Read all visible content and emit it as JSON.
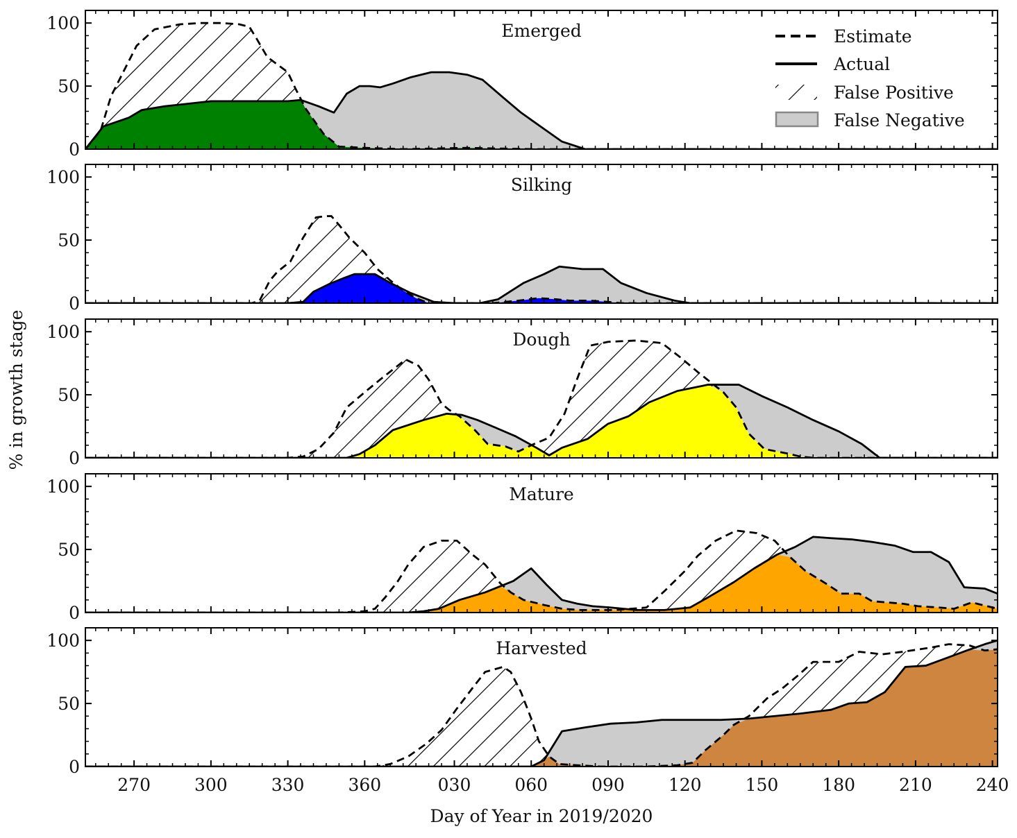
{
  "figure": {
    "ylabel": "% in growth stage",
    "xlabel": "Day of Year in 2019/2020",
    "legend": {
      "position": "top-right of first panel",
      "items": [
        {
          "label": "Estimate",
          "kind": "dashed-line"
        },
        {
          "label": "Actual",
          "kind": "solid-line"
        },
        {
          "label": "False Positive",
          "kind": "hatch"
        },
        {
          "label": "False Negative",
          "kind": "gray-patch"
        }
      ]
    },
    "colors": {
      "false_negative": "#cccccc",
      "line": "#000000",
      "emerged": "#008000",
      "silking": "#0000ff",
      "dough": "#ffff00",
      "mature": "#ffa500",
      "harvested": "#cd853f"
    },
    "xticks": [
      {
        "pos": 270,
        "label": "270"
      },
      {
        "pos": 300,
        "label": "300"
      },
      {
        "pos": 330,
        "label": "330"
      },
      {
        "pos": 360,
        "label": "360"
      },
      {
        "pos": 395,
        "label": "030"
      },
      {
        "pos": 425,
        "label": "060"
      },
      {
        "pos": 455,
        "label": "090"
      },
      {
        "pos": 485,
        "label": "120"
      },
      {
        "pos": 515,
        "label": "150"
      },
      {
        "pos": 545,
        "label": "180"
      },
      {
        "pos": 575,
        "label": "210"
      },
      {
        "pos": 605,
        "label": "240"
      }
    ],
    "yticks": [
      {
        "value": 0,
        "label": "0"
      },
      {
        "value": 50,
        "label": "50"
      },
      {
        "value": 100,
        "label": "100"
      }
    ]
  },
  "chart_data": [
    {
      "type": "area",
      "title": "Emerged",
      "color_key": "emerged",
      "xlim": [
        251,
        607
      ],
      "ylim": [
        0,
        110
      ],
      "estimate": [
        [
          251,
          0
        ],
        [
          257,
          15
        ],
        [
          261,
          42
        ],
        [
          271,
          82
        ],
        [
          278,
          95
        ],
        [
          288,
          99
        ],
        [
          296,
          100
        ],
        [
          304,
          100
        ],
        [
          311,
          99
        ],
        [
          315,
          97
        ],
        [
          318,
          87
        ],
        [
          322,
          73
        ],
        [
          330,
          61
        ],
        [
          333,
          48
        ],
        [
          337,
          32
        ],
        [
          344,
          12
        ],
        [
          350,
          2
        ],
        [
          360,
          1
        ],
        [
          375,
          0
        ],
        [
          400,
          1
        ],
        [
          425,
          0
        ],
        [
          607,
          0
        ]
      ],
      "actual": [
        [
          251,
          0
        ],
        [
          258,
          18
        ],
        [
          268,
          25
        ],
        [
          273,
          31
        ],
        [
          282,
          34
        ],
        [
          300,
          38
        ],
        [
          330,
          38
        ],
        [
          335,
          39
        ],
        [
          342,
          34
        ],
        [
          348,
          29
        ],
        [
          353,
          44
        ],
        [
          358,
          50
        ],
        [
          362,
          50
        ],
        [
          366,
          49
        ],
        [
          371,
          52
        ],
        [
          378,
          57
        ],
        [
          386,
          61
        ],
        [
          393,
          61
        ],
        [
          400,
          59
        ],
        [
          406,
          55
        ],
        [
          414,
          41
        ],
        [
          421,
          29
        ],
        [
          430,
          16
        ],
        [
          437,
          6
        ],
        [
          446,
          0
        ],
        [
          607,
          0
        ]
      ]
    },
    {
      "type": "area",
      "title": "Silking",
      "color_key": "silking",
      "xlim": [
        251,
        607
      ],
      "ylim": [
        0,
        110
      ],
      "estimate": [
        [
          251,
          0
        ],
        [
          310,
          0
        ],
        [
          316,
          0
        ],
        [
          319,
          2
        ],
        [
          323,
          18
        ],
        [
          326,
          25
        ],
        [
          331,
          33
        ],
        [
          336,
          52
        ],
        [
          341,
          68
        ],
        [
          345,
          69
        ],
        [
          347,
          69
        ],
        [
          350,
          62
        ],
        [
          354,
          52
        ],
        [
          360,
          40
        ],
        [
          365,
          27
        ],
        [
          370,
          18
        ],
        [
          375,
          10
        ],
        [
          380,
          4
        ],
        [
          385,
          0
        ],
        [
          395,
          0
        ],
        [
          410,
          0
        ],
        [
          420,
          2
        ],
        [
          428,
          4
        ],
        [
          435,
          3
        ],
        [
          440,
          2
        ],
        [
          448,
          2
        ],
        [
          455,
          1
        ],
        [
          460,
          0
        ],
        [
          607,
          0
        ]
      ],
      "actual": [
        [
          251,
          0
        ],
        [
          330,
          0
        ],
        [
          336,
          1
        ],
        [
          340,
          9
        ],
        [
          346,
          15
        ],
        [
          352,
          20
        ],
        [
          356,
          23
        ],
        [
          364,
          23
        ],
        [
          370,
          16
        ],
        [
          378,
          8
        ],
        [
          387,
          1
        ],
        [
          395,
          0
        ],
        [
          405,
          0
        ],
        [
          412,
          3
        ],
        [
          422,
          16
        ],
        [
          430,
          23
        ],
        [
          436,
          29
        ],
        [
          445,
          27
        ],
        [
          453,
          27
        ],
        [
          460,
          16
        ],
        [
          470,
          8
        ],
        [
          481,
          2
        ],
        [
          487,
          0
        ],
        [
          607,
          0
        ]
      ]
    },
    {
      "type": "area",
      "title": "Dough",
      "color_key": "dough",
      "xlim": [
        251,
        607
      ],
      "ylim": [
        0,
        110
      ],
      "estimate": [
        [
          251,
          0
        ],
        [
          320,
          0
        ],
        [
          330,
          0
        ],
        [
          336,
          1
        ],
        [
          342,
          7
        ],
        [
          348,
          20
        ],
        [
          353,
          40
        ],
        [
          360,
          52
        ],
        [
          366,
          62
        ],
        [
          371,
          70
        ],
        [
          376,
          78
        ],
        [
          381,
          73
        ],
        [
          385,
          62
        ],
        [
          390,
          43
        ],
        [
          393,
          38
        ],
        [
          397,
          33
        ],
        [
          403,
          22
        ],
        [
          408,
          11
        ],
        [
          415,
          9
        ],
        [
          420,
          5
        ],
        [
          425,
          10
        ],
        [
          432,
          16
        ],
        [
          438,
          35
        ],
        [
          443,
          63
        ],
        [
          448,
          89
        ],
        [
          455,
          92
        ],
        [
          466,
          93
        ],
        [
          476,
          91
        ],
        [
          483,
          80
        ],
        [
          490,
          68
        ],
        [
          500,
          52
        ],
        [
          505,
          40
        ],
        [
          510,
          19
        ],
        [
          516,
          7
        ],
        [
          526,
          3
        ],
        [
          530,
          1
        ],
        [
          535,
          0
        ],
        [
          607,
          0
        ]
      ],
      "actual": [
        [
          251,
          0
        ],
        [
          353,
          0
        ],
        [
          358,
          3
        ],
        [
          364,
          10
        ],
        [
          371,
          22
        ],
        [
          383,
          30
        ],
        [
          392,
          35
        ],
        [
          398,
          34
        ],
        [
          404,
          30
        ],
        [
          411,
          24
        ],
        [
          419,
          17
        ],
        [
          427,
          8
        ],
        [
          432,
          2
        ],
        [
          437,
          8
        ],
        [
          447,
          15
        ],
        [
          455,
          27
        ],
        [
          463,
          33
        ],
        [
          471,
          44
        ],
        [
          482,
          53
        ],
        [
          494,
          58
        ],
        [
          506,
          58
        ],
        [
          515,
          49
        ],
        [
          525,
          40
        ],
        [
          535,
          30
        ],
        [
          545,
          21
        ],
        [
          554,
          11
        ],
        [
          561,
          0
        ],
        [
          607,
          0
        ]
      ]
    },
    {
      "type": "area",
      "title": "Mature",
      "color_key": "mature",
      "xlim": [
        251,
        607
      ],
      "ylim": [
        0,
        110
      ],
      "estimate": [
        [
          251,
          0
        ],
        [
          350,
          0
        ],
        [
          360,
          1
        ],
        [
          364,
          3
        ],
        [
          368,
          12
        ],
        [
          373,
          25
        ],
        [
          377,
          38
        ],
        [
          383,
          52
        ],
        [
          390,
          57
        ],
        [
          396,
          57
        ],
        [
          402,
          46
        ],
        [
          407,
          38
        ],
        [
          413,
          23
        ],
        [
          417,
          16
        ],
        [
          422,
          10
        ],
        [
          430,
          6
        ],
        [
          437,
          3
        ],
        [
          444,
          2
        ],
        [
          452,
          2
        ],
        [
          458,
          2
        ],
        [
          464,
          3
        ],
        [
          470,
          4
        ],
        [
          477,
          17
        ],
        [
          485,
          33
        ],
        [
          490,
          45
        ],
        [
          497,
          57
        ],
        [
          505,
          65
        ],
        [
          513,
          63
        ],
        [
          520,
          57
        ],
        [
          526,
          44
        ],
        [
          532,
          33
        ],
        [
          540,
          23
        ],
        [
          546,
          15
        ],
        [
          553,
          15
        ],
        [
          558,
          9
        ],
        [
          564,
          8
        ],
        [
          570,
          7
        ],
        [
          576,
          5
        ],
        [
          584,
          4
        ],
        [
          590,
          3
        ],
        [
          597,
          8
        ],
        [
          603,
          5
        ],
        [
          607,
          3
        ]
      ],
      "actual": [
        [
          251,
          0
        ],
        [
          377,
          0
        ],
        [
          383,
          1
        ],
        [
          389,
          3
        ],
        [
          397,
          10
        ],
        [
          407,
          16
        ],
        [
          418,
          25
        ],
        [
          425,
          35
        ],
        [
          431,
          22
        ],
        [
          437,
          10
        ],
        [
          443,
          7
        ],
        [
          449,
          5
        ],
        [
          456,
          4
        ],
        [
          466,
          2
        ],
        [
          477,
          2
        ],
        [
          487,
          4
        ],
        [
          494,
          12
        ],
        [
          504,
          24
        ],
        [
          512,
          35
        ],
        [
          521,
          46
        ],
        [
          528,
          52
        ],
        [
          535,
          60
        ],
        [
          542,
          59
        ],
        [
          550,
          58
        ],
        [
          558,
          56
        ],
        [
          567,
          53
        ],
        [
          574,
          48
        ],
        [
          581,
          48
        ],
        [
          588,
          40
        ],
        [
          594,
          20
        ],
        [
          602,
          19
        ],
        [
          607,
          15
        ]
      ]
    },
    {
      "type": "area",
      "title": "Harvested",
      "color_key": "harvested",
      "xlim": [
        251,
        607
      ],
      "ylim": [
        0,
        110
      ],
      "estimate": [
        [
          251,
          0
        ],
        [
          364,
          0
        ],
        [
          370,
          2
        ],
        [
          377,
          8
        ],
        [
          384,
          18
        ],
        [
          390,
          29
        ],
        [
          396,
          46
        ],
        [
          402,
          62
        ],
        [
          407,
          75
        ],
        [
          414,
          79
        ],
        [
          417,
          75
        ],
        [
          421,
          59
        ],
        [
          425,
          38
        ],
        [
          428,
          20
        ],
        [
          432,
          8
        ],
        [
          436,
          2
        ],
        [
          443,
          1
        ],
        [
          452,
          0
        ],
        [
          461,
          0
        ],
        [
          470,
          0
        ],
        [
          482,
          1
        ],
        [
          488,
          3
        ],
        [
          493,
          13
        ],
        [
          500,
          25
        ],
        [
          504,
          33
        ],
        [
          510,
          40
        ],
        [
          517,
          54
        ],
        [
          523,
          62
        ],
        [
          529,
          72
        ],
        [
          535,
          83
        ],
        [
          545,
          83
        ],
        [
          553,
          91
        ],
        [
          562,
          89
        ],
        [
          570,
          91
        ],
        [
          580,
          94
        ],
        [
          588,
          97
        ],
        [
          596,
          96
        ],
        [
          602,
          92
        ],
        [
          607,
          93
        ]
      ],
      "actual": [
        [
          251,
          0
        ],
        [
          425,
          0
        ],
        [
          430,
          5
        ],
        [
          437,
          28
        ],
        [
          446,
          31
        ],
        [
          456,
          34
        ],
        [
          466,
          35
        ],
        [
          476,
          37
        ],
        [
          488,
          37
        ],
        [
          499,
          37
        ],
        [
          510,
          38
        ],
        [
          520,
          40
        ],
        [
          530,
          42
        ],
        [
          542,
          45
        ],
        [
          549,
          50
        ],
        [
          556,
          51
        ],
        [
          563,
          59
        ],
        [
          571,
          79
        ],
        [
          579,
          80
        ],
        [
          587,
          86
        ],
        [
          595,
          92
        ],
        [
          602,
          97
        ],
        [
          607,
          100
        ]
      ]
    }
  ]
}
